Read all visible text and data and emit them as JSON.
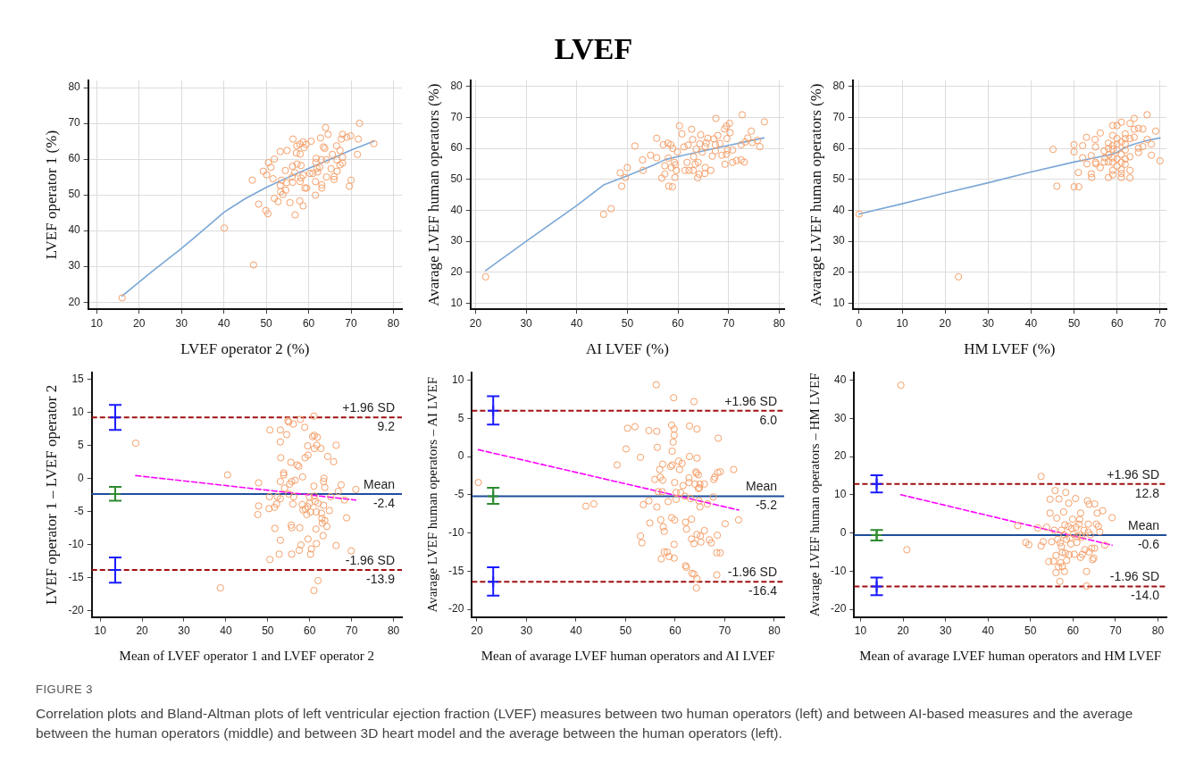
{
  "chart_data": [
    {
      "type": "other",
      "title": "LVEF"
    },
    {
      "type": "scatter",
      "xlabel": "LVEF operator 2 (%)",
      "ylabel": "LVEF operator 1 (%)",
      "xlim": [
        8,
        82
      ],
      "ylim": [
        18,
        82
      ],
      "xticks": [
        10,
        20,
        30,
        40,
        50,
        60,
        70,
        80
      ],
      "yticks": [
        20,
        30,
        40,
        50,
        60,
        70,
        80
      ],
      "grid": true,
      "series": [
        {
          "color": "#f5a06a",
          "marker": "circle",
          "x": [
            16.0,
            40.1,
            47.0,
            46.7,
            48.2,
            49.3,
            50.1,
            49.9,
            50.4,
            50.5,
            51.1,
            51.6,
            51.9,
            51.9,
            52.8,
            53.3,
            53.3,
            53.4,
            53.6,
            53.9,
            54.5,
            54.6,
            54.9,
            54.8,
            55.6,
            56.1,
            56.3,
            56.2,
            56.2,
            56.8,
            56.7,
            57.1,
            57.3,
            57.2,
            57.9,
            58.0,
            57.9,
            58.0,
            58.2,
            58.2,
            58.7,
            58.9,
            58.7,
            58.7,
            59.1,
            59.5,
            59.4,
            60.6,
            60.3,
            61.0,
            61.6,
            61.6,
            61.8,
            61.7,
            62.0,
            62.1,
            62.6,
            62.8,
            63.0,
            63.1,
            63.1,
            63.5,
            63.8,
            64.0,
            64.2,
            64.2,
            64.6,
            65.3,
            65.6,
            66.0,
            66.0,
            66.6,
            66.7,
            66.7,
            67.4,
            67.4,
            68.0,
            68.0,
            68.0,
            67.7,
            69.0,
            69.9,
            69.6,
            70.0,
            71.5,
            71.7,
            72.0,
            75.4
          ],
          "values": [
            21.2,
            40.7,
            30.4,
            54.1,
            47.4,
            56.6,
            55.6,
            45.6,
            44.7,
            59.0,
            57.7,
            54.5,
            60.0,
            49.0,
            48.1,
            62.1,
            52.6,
            50.9,
            54.1,
            50.1,
            56.8,
            51.3,
            62.4,
            53.4,
            47.8,
            55.0,
            65.6,
            58.0,
            53.5,
            44.4,
            56.2,
            61.7,
            58.6,
            63.7,
            64.2,
            61.4,
            48.3,
            53.7,
            54.7,
            58.2,
            64.8,
            63.2,
            55.5,
            46.9,
            51.9,
            51.9,
            64.1,
            65.0,
            56.0,
            56.0,
            53.7,
            49.9,
            60.2,
            59.0,
            57.4,
            56.4,
            57.7,
            65.9,
            59.8,
            52.8,
            51.9,
            63.4,
            63.0,
            68.8,
            59.8,
            55.0,
            66.9,
            57.3,
            61.3,
            55.1,
            54.3,
            63.7,
            59.7,
            56.6,
            62.4,
            58.4,
            66.9,
            60.5,
            58.9,
            65.6,
            66.1,
            66.5,
            52.4,
            54.1,
            61.3,
            65.6,
            70.0,
            64.3
          ]
        },
        {
          "type": "line",
          "color": "#7ba7d6",
          "marker": "none",
          "x": [
            16,
            23,
            30,
            35,
            40.1,
            45,
            50,
            55,
            60,
            65,
            70,
            75.4
          ],
          "values": [
            21.7,
            28.5,
            35.0,
            40.0,
            45.2,
            48.9,
            52.1,
            54.8,
            57.4,
            59.9,
            62.5,
            65.0
          ]
        }
      ]
    },
    {
      "type": "scatter",
      "xlabel": "AI LVEF (%)",
      "ylabel": "Avarage LVEF human operators (%)",
      "xlim": [
        19,
        81
      ],
      "ylim": [
        8,
        82
      ],
      "xticks": [
        20,
        30,
        40,
        50,
        60,
        70,
        80
      ],
      "yticks": [
        10,
        20,
        30,
        40,
        50,
        60,
        70,
        80
      ],
      "grid": true,
      "series": [
        {
          "color": "#f5a06a",
          "marker": "circle",
          "x": [
            22.0,
            45.3,
            46.8,
            48.6,
            48.9,
            49.6,
            50.0,
            51.5,
            53.0,
            53.1,
            54.6,
            55.8,
            55.8,
            56.8,
            57.1,
            57.4,
            57.4,
            58.0,
            58.1,
            58.2,
            58.6,
            58.7,
            58.9,
            59.0,
            59.3,
            59.4,
            59.5,
            59.7,
            59.9,
            60.3,
            60.8,
            61.2,
            61.4,
            61.8,
            62.0,
            62.2,
            62.7,
            63.0,
            62.9,
            63.1,
            63.4,
            63.6,
            63.9,
            64.0,
            64.2,
            64.3,
            64.5,
            64.8,
            65.3,
            65.4,
            65.4,
            65.6,
            65.9,
            66.5,
            66.8,
            67.1,
            67.4,
            67.4,
            67.5,
            67.9,
            68.3,
            68.7,
            69.2,
            69.3,
            69.6,
            69.7,
            69.8,
            69.6,
            70.2,
            70.3,
            70.8,
            70.8,
            71.6,
            72.5,
            72.5,
            72.7,
            73.1,
            73.3,
            73.8,
            74.5,
            74.7,
            75.7,
            76.2,
            77.1
          ],
          "values": [
            18.5,
            38.7,
            40.5,
            52.1,
            47.8,
            50.6,
            53.8,
            60.8,
            56.3,
            52.9,
            57.8,
            63.3,
            57.0,
            50.4,
            61.2,
            51.7,
            54.4,
            61.7,
            56.9,
            47.8,
            61.2,
            53.8,
            47.6,
            60.0,
            55.5,
            50.6,
            54.7,
            52.9,
            58.9,
            67.3,
            64.7,
            60.5,
            52.9,
            55.5,
            61.1,
            52.9,
            66.2,
            52.9,
            62.9,
            57.3,
            54.9,
            59.8,
            50.5,
            55.5,
            51.7,
            61.5,
            64.4,
            58.8,
            51.9,
            53.8,
            60.6,
            61.8,
            63.3,
            52.9,
            57.5,
            63.1,
            61.2,
            59.2,
            69.7,
            64.2,
            61.6,
            57.8,
            66.3,
            54.9,
            58.1,
            63.2,
            59.5,
            67.2,
            68.1,
            65.1,
            59.5,
            55.5,
            56.1,
            61.2,
            56.3,
            70.9,
            55.6,
            62.1,
            63.4,
            65.6,
            61.9,
            62.6,
            60.6,
            68.6
          ]
        },
        {
          "type": "line",
          "color": "#7ba7d6",
          "marker": "none",
          "x": [
            22,
            30,
            40,
            45.3,
            50,
            55,
            57.5,
            60,
            65,
            70,
            77
          ],
          "values": [
            20.5,
            30.0,
            41.5,
            48.2,
            51.2,
            54.5,
            56.4,
            57.4,
            59.2,
            61.0,
            63.4
          ]
        }
      ]
    },
    {
      "type": "scatter",
      "xlabel": "HM LVEF (%)",
      "ylabel": "Avarage LVEF human operators (%)",
      "xlim": [
        -1.5,
        71.5
      ],
      "ylim": [
        8,
        82
      ],
      "xticks": [
        0,
        10,
        20,
        30,
        40,
        50,
        60,
        70
      ],
      "yticks": [
        10,
        20,
        30,
        40,
        50,
        60,
        70,
        80
      ],
      "grid": true,
      "series": [
        {
          "color": "#f5a06a",
          "marker": "circle",
          "x": [
            0.0,
            23.1,
            45.1,
            46.0,
            50.0,
            50.0,
            50.0,
            51.0,
            51.1,
            52.0,
            52.0,
            52.9,
            53.0,
            54.0,
            54.0,
            54.1,
            54.9,
            55.0,
            55.0,
            55.1,
            56.1,
            56.1,
            57.0,
            57.0,
            57.2,
            58.0,
            58.0,
            58.0,
            58.0,
            58.1,
            59.0,
            59.0,
            59.0,
            59.0,
            59.0,
            59.0,
            59.0,
            59.0,
            60.0,
            60.0,
            60.0,
            60.0,
            60.0,
            60.0,
            61.0,
            61.0,
            61.0,
            61.0,
            61.0,
            61.0,
            61.0,
            61.9,
            61.9,
            61.9,
            61.9,
            61.9,
            61.9,
            63.0,
            63.0,
            63.0,
            63.0,
            63.0,
            64.0,
            64.0,
            64.0,
            65.0,
            65.0,
            65.0,
            66.0,
            66.0,
            67.0,
            67.0,
            68.0,
            68.0,
            69.0,
            70.0
          ],
          "values": [
            38.8,
            18.5,
            59.7,
            47.8,
            61.2,
            58.9,
            47.6,
            52.2,
            47.6,
            60.9,
            57.0,
            63.6,
            55.0,
            57.7,
            51.8,
            50.6,
            62.9,
            60.5,
            55.5,
            55.0,
            65.0,
            53.8,
            59.2,
            55.6,
            57.0,
            61.7,
            60.0,
            55.6,
            50.6,
            57.9,
            67.4,
            64.2,
            61.0,
            59.8,
            57.0,
            55.5,
            52.9,
            51.5,
            67.4,
            63.2,
            61.4,
            59.5,
            56.6,
            54.3,
            68.5,
            62.1,
            58.1,
            55.5,
            53.1,
            50.6,
            51.9,
            64.7,
            63.2,
            61.4,
            59.5,
            54.9,
            56.6,
            68.1,
            63.2,
            57.3,
            52.9,
            50.5,
            69.7,
            66.2,
            63.6,
            66.5,
            60.1,
            58.7,
            66.3,
            60.6,
            70.9,
            62.9,
            61.4,
            57.8,
            65.6,
            56.0
          ]
        },
        {
          "type": "line",
          "color": "#7ba7d6",
          "marker": "none",
          "x": [
            0,
            10,
            20,
            30,
            40,
            50,
            55,
            58,
            60,
            62,
            64,
            67,
            70
          ],
          "values": [
            38.8,
            42.1,
            45.6,
            48.9,
            52.4,
            55.6,
            57.0,
            57.9,
            58.7,
            60.4,
            61.4,
            62.6,
            63.4
          ]
        }
      ]
    },
    {
      "type": "scatter",
      "xlabel": "Mean of LVEF operator 1 and LVEF operator 2",
      "ylabel": "LVEF operator 1 – LVEF operator 2",
      "xlim": [
        8,
        82
      ],
      "ylim": [
        -21,
        16
      ],
      "xticks": [
        10,
        20,
        30,
        40,
        50,
        60,
        70,
        80
      ],
      "yticks": [
        -20,
        -15,
        -10,
        -5,
        0,
        5,
        10,
        15
      ],
      "series": [
        {
          "color": "#f5a06a",
          "marker": "circle",
          "x": [
            18.5,
            38.7,
            40.4,
            47.8,
            47.8,
            47.6,
            50.5,
            50.4,
            50.3,
            50.5,
            51.6,
            51.7,
            52.1,
            52.3,
            52.7,
            53.0,
            53.0,
            53.1,
            53.0,
            53.0,
            53.0,
            53.8,
            53.8,
            54.0,
            54.5,
            54.8,
            55.0,
            55.2,
            55.0,
            55.5,
            55.7,
            55.6,
            55.7,
            55.7,
            56.0,
            56.1,
            56.2,
            56.5,
            57.0,
            57.4,
            57.6,
            57.5,
            57.8,
            57.9,
            58.3,
            58.2,
            58.4,
            58.8,
            58.9,
            59.0,
            59.3,
            59.5,
            59.5,
            59.6,
            59.6,
            59.9,
            60.0,
            60.2,
            60.2,
            60.4,
            60.7,
            61.0,
            61.1,
            61.0,
            61.1,
            61.0,
            61.1,
            61.3,
            61.5,
            61.6,
            61.7,
            61.8,
            61.6,
            62.0,
            62.0,
            62.7,
            62.8,
            62.9,
            63.0,
            63.2,
            63.3,
            63.4,
            63.3,
            63.6,
            63.6,
            64.1,
            64.3,
            64.7,
            65.0,
            65.7,
            66.3,
            66.3,
            66.8,
            67.5,
            68.3,
            68.8,
            69.9,
            71.0
          ],
          "values": [
            5.3,
            -16.6,
            0.5,
            -0.7,
            -4.2,
            -5.5,
            7.3,
            -2.8,
            -4.6,
            -12.3,
            -4.4,
            -7.6,
            -3.9,
            -2.8,
            -11.5,
            7.3,
            5.5,
            3.1,
            -0.5,
            -3.1,
            -9.4,
            0.8,
            0.5,
            -1.5,
            6.6,
            8.7,
            8.5,
            -0.9,
            -2.4,
            2.4,
            -0.5,
            -7.1,
            -7.5,
            -11.5,
            -3.9,
            8.2,
            -2.8,
            -0.3,
            2.0,
            1.8,
            -7.5,
            -10.9,
            8.9,
            -10.1,
            0.2,
            -4.0,
            -4.8,
            7.7,
            3.1,
            -4.7,
            -5.5,
            4.9,
            -4.3,
            -9.2,
            3.5,
            -2.8,
            -3.8,
            -5.1,
            -11.5,
            -10.7,
            6.3,
            9.4,
            6.5,
            -1.2,
            -2.7,
            -17.0,
            4.5,
            -3.5,
            -7.7,
            -5.1,
            5.0,
            6.2,
            -9.9,
            -3.8,
            -15.5,
            4.5,
            -5.3,
            -6.1,
            -6.8,
            -8.7,
            -4.1,
            0.0,
            -0.5,
            -1.4,
            -6.4,
            -7.3,
            3.3,
            -4.9,
            -2.8,
            2.5,
            5.0,
            -10.2,
            -2.0,
            -1.0,
            -3.3,
            -6.0,
            -11.0,
            -1.7
          ]
        },
        {
          "type": "line",
          "color": "#ff00ff",
          "marker": "none",
          "line_style": "dashed",
          "x": [
            18.5,
            71.0
          ],
          "values": [
            0.4,
            -3.3
          ]
        },
        {
          "type": "scatter",
          "marker": "cross",
          "x": [
            13.6,
            13.6,
            13.6
          ],
          "values": [
            9.2,
            -2.4,
            -13.9
          ],
          "errors": [
            [
              7.3,
              11.1
            ],
            [
              -3.4,
              -1.3
            ],
            [
              -15.8,
              -12.0
            ]
          ],
          "colors": [
            "#1a1aff",
            "#2e8b2e",
            "#1a1aff"
          ]
        }
      ],
      "ref_lines": [
        {
          "axis": "y",
          "value": 9.2,
          "label": "+1.96 SD",
          "color": "#a01010",
          "line_style": "dashed"
        },
        {
          "axis": "y",
          "value": -2.4,
          "label": "Mean",
          "color": "#1f4e9c",
          "line_style": "solid"
        },
        {
          "axis": "y",
          "value": -13.9,
          "label": "-1.96 SD",
          "color": "#a01010",
          "line_style": "dashed"
        }
      ],
      "annotations": [
        {
          "text": "9.2",
          "y": 9.2
        },
        {
          "text": "-2.4",
          "y": -2.4
        },
        {
          "text": "-13.9",
          "y": -13.9
        }
      ]
    },
    {
      "type": "scatter",
      "xlabel": "Mean of avarage LVEF human operators and AI LVEF",
      "ylabel": "Avarage LVEF human operators – AI LVEF",
      "xlim": [
        19,
        82
      ],
      "ylim": [
        -21,
        11
      ],
      "xticks": [
        20,
        30,
        40,
        50,
        60,
        70,
        80
      ],
      "yticks": [
        -20,
        -15,
        -10,
        -5,
        0,
        5,
        10
      ],
      "series": [
        {
          "color": "#f5a06a",
          "marker": "circle",
          "x": [
            20.3,
            42.0,
            43.6,
            48.3,
            50.1,
            50.4,
            51.9,
            53.0,
            53.0,
            53.3,
            53.6,
            54.7,
            54.7,
            54.9,
            55.9,
            56.2,
            56.3,
            56.3,
            56.4,
            56.6,
            56.9,
            57.0,
            57.1,
            57.2,
            57.4,
            57.5,
            57.5,
            57.6,
            57.8,
            57.8,
            58.4,
            58.6,
            58.8,
            59.1,
            59.3,
            59.3,
            59.4,
            59.4,
            59.6,
            59.7,
            59.8,
            59.8,
            59.8,
            59.8,
            59.9,
            59.9,
            60.2,
            60.2,
            60.7,
            60.9,
            61.1,
            61.4,
            61.6,
            62.0,
            62.1,
            62.1,
            62.3,
            62.3,
            62.8,
            62.9,
            62.9,
            62.8,
            63.1,
            63.3,
            63.3,
            63.4,
            63.8,
            63.8,
            63.8,
            64.0,
            64.2,
            64.3,
            64.3,
            64.4,
            64.4,
            64.4,
            64.4,
            64.7,
            64.7,
            64.8,
            65.0,
            64.9,
            65.0,
            65.1,
            65.2,
            65.9,
            65.9,
            66.5,
            66.9,
            67.3,
            67.7,
            67.8,
            68.0,
            68.4,
            68.5,
            68.4,
            68.6,
            68.7,
            69.1,
            69.1,
            70.1,
            71.8,
            72.8
          ],
          "values": [
            -3.4,
            -6.5,
            -6.2,
            -1.1,
            1.0,
            3.7,
            3.9,
            -0.1,
            -10.4,
            -11.3,
            -6.3,
            -5.8,
            3.4,
            -8.7,
            -3.0,
            9.4,
            3.3,
            -6.6,
            1.2,
            -4.6,
            -1.7,
            -2.7,
            -8.3,
            -13.4,
            -4.6,
            -3.1,
            -1.0,
            -9.2,
            -9.8,
            -12.5,
            -12.5,
            -5.9,
            -13.1,
            -1.3,
            4.1,
            -8.0,
            0.7,
            -1.1,
            1.9,
            7.7,
            3.6,
            -11.5,
            -13.3,
            2.8,
            -3.4,
            -8.3,
            -5.6,
            -4.7,
            -0.6,
            -1.7,
            -4.7,
            -0.9,
            -3.8,
            -5.2,
            -8.6,
            -14.3,
            -14.5,
            -9.5,
            -2.8,
            4.0,
            0.0,
            -3.4,
            -5.5,
            -8.2,
            -10.8,
            -15.3,
            7.2,
            -11.4,
            -15.4,
            -3.6,
            -2.0,
            -2.2,
            -17.2,
            3.6,
            -0.2,
            -10.2,
            -16.0,
            -2.4,
            -4.2,
            -5.8,
            -6.6,
            -4.1,
            -3.6,
            -10.4,
            -11.2,
            -3.6,
            -9.7,
            -6.2,
            -10.9,
            -11.3,
            -5.3,
            -3.0,
            -2.7,
            -15.5,
            -10.3,
            -12.6,
            -2.1,
            2.4,
            -2.0,
            -12.6,
            -8.8,
            -1.7,
            -8.3
          ]
        },
        {
          "type": "line",
          "color": "#ff00ff",
          "marker": "none",
          "line_style": "dashed",
          "x": [
            20.3,
            72.8
          ],
          "values": [
            0.9,
            -7.0
          ]
        },
        {
          "type": "scatter",
          "marker": "cross",
          "x": [
            23.3,
            23.3,
            23.3
          ],
          "values": [
            6.0,
            -5.2,
            -16.4
          ],
          "errors": [
            [
              4.2,
              7.9
            ],
            [
              -6.2,
              -4.1
            ],
            [
              -18.2,
              -14.5
            ]
          ],
          "colors": [
            "#1a1aff",
            "#2e8b2e",
            "#1a1aff"
          ]
        }
      ],
      "ref_lines": [
        {
          "axis": "y",
          "value": 6.0,
          "label": "+1.96 SD",
          "color": "#a01010",
          "line_style": "dashed"
        },
        {
          "axis": "y",
          "value": -5.2,
          "label": "Mean",
          "color": "#1f4e9c",
          "line_style": "solid"
        },
        {
          "axis": "y",
          "value": -16.4,
          "label": "-1.96 SD",
          "color": "#a01010",
          "line_style": "dashed"
        }
      ],
      "annotations": [
        {
          "text": "6.0",
          "y": 6.0
        },
        {
          "text": "-5.2",
          "y": -5.2
        },
        {
          "text": "-16.4",
          "y": -16.4
        }
      ]
    },
    {
      "type": "scatter",
      "xlabel": "Mean of avarage LVEF human operators and HM LVEF",
      "ylabel": "Avarage LVEF human operators – HM LVEF",
      "xlim": [
        8.5,
        82
      ],
      "ylim": [
        -22,
        42
      ],
      "xticks": [
        10,
        20,
        30,
        40,
        50,
        60,
        70,
        80
      ],
      "yticks": [
        -20,
        -10,
        0,
        10,
        20,
        30,
        40
      ],
      "series": [
        {
          "color": "#f5a06a",
          "marker": "circle",
          "x": [
            19.5,
            20.9,
            47.0,
            48.9,
            49.6,
            51.7,
            52.5,
            52.5,
            53.0,
            53.8,
            54.3,
            54.6,
            54.6,
            55.0,
            55.4,
            55.6,
            55.8,
            56.0,
            56.2,
            56.0,
            56.4,
            56.6,
            56.7,
            56.9,
            57.0,
            57.1,
            57.3,
            57.3,
            57.5,
            57.5,
            57.8,
            57.9,
            58.0,
            58.1,
            58.2,
            58.3,
            58.5,
            58.5,
            58.9,
            59.0,
            59.1,
            59.3,
            59.5,
            59.7,
            59.9,
            60.1,
            60.3,
            60.6,
            60.7,
            60.9,
            61.0,
            61.4,
            61.6,
            61.8,
            61.8,
            61.7,
            62.1,
            62.2,
            62.6,
            62.8,
            63.2,
            63.2,
            63.4,
            63.6,
            63.6,
            63.8,
            63.8,
            64.1,
            64.4,
            64.6,
            64.9,
            65.1,
            65.1,
            65.5,
            65.7,
            66.0,
            66.3,
            67.0,
            67.5,
            69.2
          ],
          "values": [
            38.7,
            -4.4,
            1.9,
            -2.5,
            -3.1,
            1.3,
            14.8,
            -3.4,
            -2.3,
            1.5,
            -7.5,
            8.8,
            5.2,
            -2.3,
            -7.4,
            0.7,
            11.1,
            -5.9,
            3.9,
            -10.4,
            -1.7,
            -8.9,
            8.9,
            -12.7,
            -2.6,
            -7.8,
            -3.6,
            0.7,
            -5.1,
            -8.8,
            5.5,
            -0.5,
            -10.1,
            2.1,
            -5.3,
            10.6,
            -7.2,
            -1.7,
            1.7,
            7.8,
            -5.7,
            -1.3,
            -2.9,
            1.1,
            3.6,
            -0.3,
            -5.6,
            9.0,
            1.5,
            -2.5,
            -0.9,
            2.3,
            3.5,
            5.2,
            -6.4,
            -0.5,
            -1.1,
            -5.6,
            0.7,
            -4.4,
            -10.1,
            -13.9,
            8.4,
            2.3,
            0.2,
            7.5,
            -5.0,
            -0.5,
            -4.0,
            -7.0,
            -6.6,
            7.6,
            -4.0,
            2.3,
            5.2,
            1.7,
            0.3,
            5.8,
            -3.2,
            4.0
          ]
        },
        {
          "type": "line",
          "color": "#ff00ff",
          "marker": "none",
          "line_style": "dashed",
          "x": [
            19.5,
            69.2
          ],
          "values": [
            10.0,
            -3.2
          ]
        },
        {
          "type": "scatter",
          "marker": "cross",
          "x": [
            13.8,
            13.8,
            13.8
          ],
          "values": [
            12.8,
            -0.6,
            -14.0
          ],
          "errors": [
            [
              10.6,
              15.1
            ],
            [
              -2.0,
              0.8
            ],
            [
              -16.3,
              -11.7
            ]
          ],
          "colors": [
            "#1a1aff",
            "#2e8b2e",
            "#1a1aff"
          ]
        }
      ],
      "ref_lines": [
        {
          "axis": "y",
          "value": 12.8,
          "label": "+1.96 SD",
          "color": "#a01010",
          "line_style": "dashed"
        },
        {
          "axis": "y",
          "value": -0.6,
          "label": "Mean",
          "color": "#1f4e9c",
          "line_style": "solid"
        },
        {
          "axis": "y",
          "value": -14.0,
          "label": "-1.96 SD",
          "color": "#a01010",
          "line_style": "dashed"
        }
      ],
      "annotations": [
        {
          "text": "12.8",
          "y": 12.8
        },
        {
          "text": "-0.6",
          "y": -0.6
        },
        {
          "text": "-14.0",
          "y": -14.0
        }
      ]
    },
    {
      "type": "other",
      "annotations": [
        "FIGURE 3",
        "Correlation plots and Bland-Altman plots of left ventricular ejection fraction (LVEF) measures between two human operators (left) and between AI-based measures and the average between the human operators (middle) and between 3D heart model and the average between the human operators (left)."
      ]
    }
  ]
}
